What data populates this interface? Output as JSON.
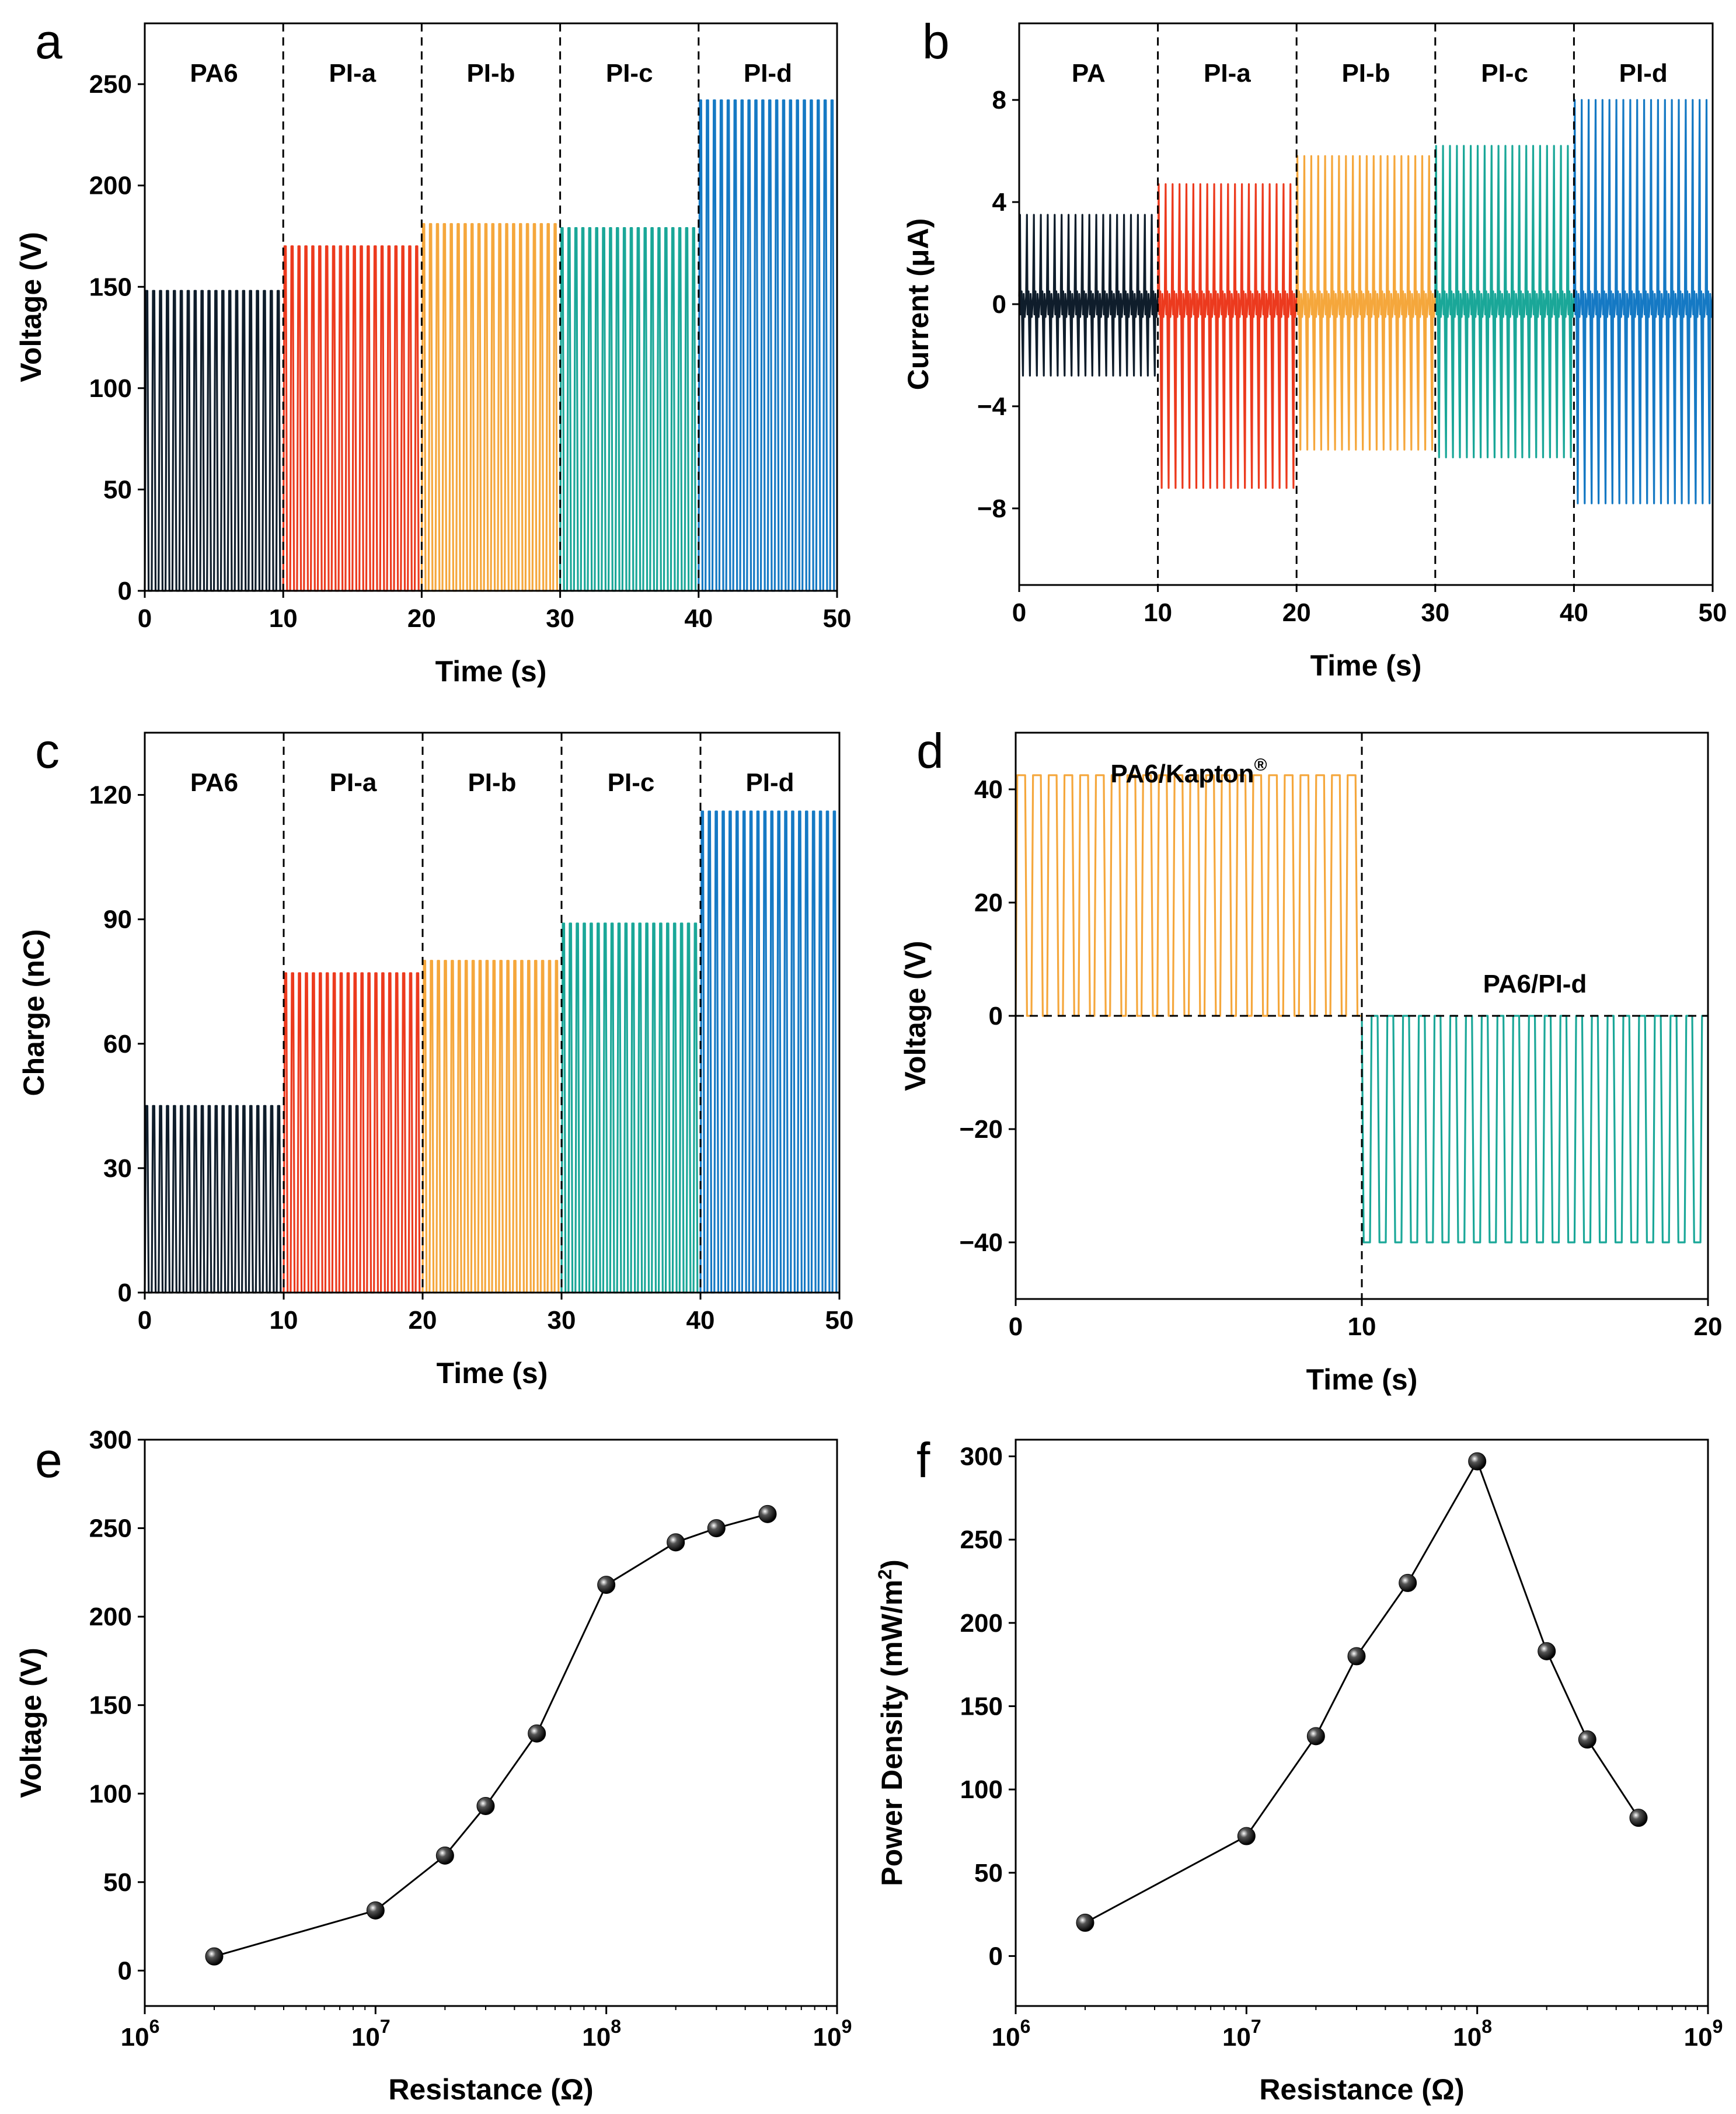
{
  "colors": {
    "PA6": "#0f1d2b",
    "PI-a": "#ec3a1e",
    "PI-b": "#f5a73c",
    "PI-c": "#1aa798",
    "PI-d": "#1579c4",
    "marker": "#111111"
  },
  "chart_data": [
    {
      "id": "a",
      "letter": "a",
      "type": "line",
      "xlabel": "Time (s)",
      "ylabel": "Voltage (V)",
      "xlim": [
        0,
        50
      ],
      "ylim": [
        0,
        280
      ],
      "xticks": [
        0,
        10,
        20,
        30,
        40,
        50
      ],
      "yticks": [
        0,
        50,
        100,
        150,
        200,
        250
      ],
      "series": [
        {
          "name": "PA6",
          "x_range": [
            0,
            10
          ],
          "peak": 148,
          "trough": 0,
          "cycles": 20
        },
        {
          "name": "PI-a",
          "x_range": [
            10,
            20
          ],
          "peak": 170,
          "trough": 0,
          "cycles": 20
        },
        {
          "name": "PI-b",
          "x_range": [
            20,
            30
          ],
          "peak": 181,
          "trough": 0,
          "cycles": 20
        },
        {
          "name": "PI-c",
          "x_range": [
            30,
            40
          ],
          "peak": 179,
          "trough": 0,
          "cycles": 20
        },
        {
          "name": "PI-d",
          "x_range": [
            40,
            50
          ],
          "peak": 242,
          "trough": 0,
          "cycles": 20
        }
      ],
      "segment_labels": [
        "PA6",
        "PI-a",
        "PI-b",
        "PI-c",
        "PI-d"
      ]
    },
    {
      "id": "b",
      "letter": "b",
      "type": "line",
      "xlabel": "Time (s)",
      "ylabel": "Current (μA)",
      "xlim": [
        0,
        50
      ],
      "ylim": [
        -11,
        11
      ],
      "xticks": [
        0,
        10,
        20,
        30,
        40,
        50
      ],
      "yticks": [
        -8,
        -4,
        0,
        4,
        8
      ],
      "series": [
        {
          "name": "PA6",
          "x_range": [
            0,
            10
          ],
          "peak": 3.5,
          "trough": -2.8,
          "cycles": 20
        },
        {
          "name": "PI-a",
          "x_range": [
            10,
            20
          ],
          "peak": 4.7,
          "trough": -7.2,
          "cycles": 20
        },
        {
          "name": "PI-b",
          "x_range": [
            20,
            30
          ],
          "peak": 5.8,
          "trough": -5.7,
          "cycles": 20
        },
        {
          "name": "PI-c",
          "x_range": [
            30,
            40
          ],
          "peak": 6.2,
          "trough": -6.0,
          "cycles": 20
        },
        {
          "name": "PI-d",
          "x_range": [
            40,
            50
          ],
          "peak": 8.0,
          "trough": -7.8,
          "cycles": 20
        }
      ],
      "segment_labels": [
        "PA",
        "PI-a",
        "PI-b",
        "PI-c",
        "PI-d"
      ]
    },
    {
      "id": "c",
      "letter": "c",
      "type": "line",
      "xlabel": "Time (s)",
      "ylabel": "Charge (nC)",
      "xlim": [
        0,
        50
      ],
      "ylim": [
        0,
        135
      ],
      "xticks": [
        0,
        10,
        20,
        30,
        40,
        50
      ],
      "yticks": [
        0,
        30,
        60,
        90,
        120
      ],
      "series": [
        {
          "name": "PA6",
          "x_range": [
            0,
            10
          ],
          "peak": 45,
          "trough": 0,
          "cycles": 20
        },
        {
          "name": "PI-a",
          "x_range": [
            10,
            20
          ],
          "peak": 77,
          "trough": 0,
          "cycles": 20
        },
        {
          "name": "PI-b",
          "x_range": [
            20,
            30
          ],
          "peak": 80,
          "trough": 0,
          "cycles": 20
        },
        {
          "name": "PI-c",
          "x_range": [
            30,
            40
          ],
          "peak": 89,
          "trough": 0,
          "cycles": 20
        },
        {
          "name": "PI-d",
          "x_range": [
            40,
            50
          ],
          "peak": 116,
          "trough": 0,
          "cycles": 20
        }
      ],
      "segment_labels": [
        "PA6",
        "PI-a",
        "PI-b",
        "PI-c",
        "PI-d"
      ]
    },
    {
      "id": "d",
      "letter": "d",
      "type": "line",
      "xlabel": "Time (s)",
      "ylabel": "Voltage (V)",
      "xlim": [
        0,
        20
      ],
      "ylim": [
        -50,
        50
      ],
      "xticks": [
        0,
        10,
        20
      ],
      "yticks": [
        -40,
        -20,
        0,
        20,
        40
      ],
      "series": [
        {
          "name": "PA6/Kapton®",
          "color_key": "PI-b",
          "x_range": [
            0,
            10
          ],
          "peak": 42.5,
          "trough": 0,
          "cycles": 22
        },
        {
          "name": "PA6/PI-d",
          "color_key": "PI-c",
          "x_range": [
            10,
            20
          ],
          "peak": 0,
          "trough": -40,
          "cycles": 22
        }
      ],
      "annotations": [
        "PA6/Kapton",
        "®",
        "PA6/PI-d"
      ]
    },
    {
      "id": "e",
      "letter": "e",
      "type": "scatter",
      "xlabel": "Resistance (Ω)",
      "ylabel": "Voltage (V)",
      "xscale": "log",
      "xlim": [
        1000000,
        1000000000
      ],
      "ylim": [
        -20,
        300
      ],
      "xtick_labels": [
        "10",
        "10",
        "10",
        "10"
      ],
      "xtick_exponents": [
        "6",
        "7",
        "8",
        "9"
      ],
      "yticks": [
        0,
        50,
        100,
        150,
        200,
        250,
        300
      ],
      "x": [
        2000000,
        10000000,
        20000000,
        30000000,
        50000000,
        100000000,
        200000000,
        300000000,
        500000000
      ],
      "y": [
        8,
        34,
        65,
        93,
        134,
        218,
        242,
        250,
        258
      ]
    },
    {
      "id": "f",
      "letter": "f",
      "type": "scatter",
      "xlabel": "Resistance (Ω)",
      "ylabel": "Power Density (mW/m",
      "ylabel_sup": "2",
      "ylabel_end": ")",
      "xscale": "log",
      "xlim": [
        1000000,
        1000000000
      ],
      "ylim": [
        -30,
        310
      ],
      "xtick_labels": [
        "10",
        "10",
        "10",
        "10"
      ],
      "xtick_exponents": [
        "6",
        "7",
        "8",
        "9"
      ],
      "yticks": [
        0,
        50,
        100,
        150,
        200,
        250,
        300
      ],
      "x": [
        2000000,
        10000000,
        20000000,
        30000000,
        50000000,
        100000000,
        200000000,
        300000000,
        500000000
      ],
      "y": [
        20,
        72,
        132,
        180,
        224,
        297,
        183,
        130,
        83
      ]
    }
  ]
}
